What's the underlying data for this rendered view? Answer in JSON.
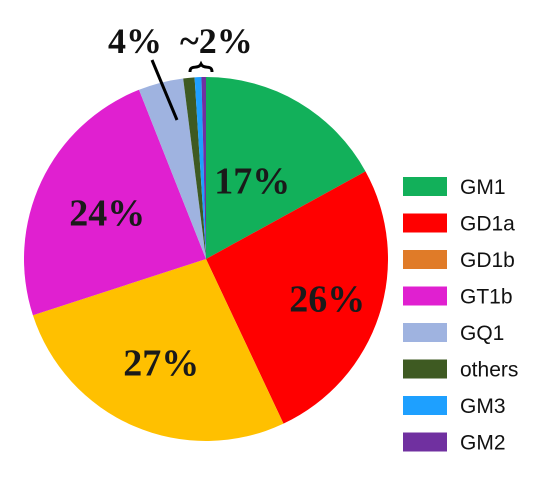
{
  "chart_data": {
    "type": "pie",
    "title": "",
    "slices": [
      {
        "label": "GM1",
        "value": 17,
        "color": "#12b05a",
        "data_label": "17%"
      },
      {
        "label": "GD1a",
        "value": 26,
        "color": "#ff0000",
        "data_label": "26%"
      },
      {
        "label": "GD1b",
        "value": 27,
        "color": "#ffc000",
        "data_label": "27%"
      },
      {
        "label": "GT1b",
        "value": 24,
        "color": "#e020d0",
        "data_label": "24%"
      },
      {
        "label": "GQ1",
        "value": 4,
        "color": "#9fb3e0",
        "data_label": "4%"
      },
      {
        "label": "others",
        "value": 1,
        "color": "#3e5a22",
        "data_label": ""
      },
      {
        "label": "GM3",
        "value": 0.6,
        "color": "#1ea0ff",
        "data_label": ""
      },
      {
        "label": "GM2",
        "value": 0.4,
        "color": "#7030a0",
        "data_label": ""
      }
    ],
    "legend": {
      "position": "right",
      "entries": [
        {
          "label": "GM1",
          "color": "#12b05a"
        },
        {
          "label": "GD1a",
          "color": "#ff0000"
        },
        {
          "label": "GD1b",
          "color": "#e07b28"
        },
        {
          "label": "GT1b",
          "color": "#e020d0"
        },
        {
          "label": "GQ1",
          "color": "#9fb3e0"
        },
        {
          "label": "others",
          "color": "#3e5a22"
        },
        {
          "label": "GM3",
          "color": "#1ea0ff"
        },
        {
          "label": "GM2",
          "color": "#7030a0"
        }
      ]
    },
    "annotations": {
      "small_group_label": "~2%"
    }
  }
}
